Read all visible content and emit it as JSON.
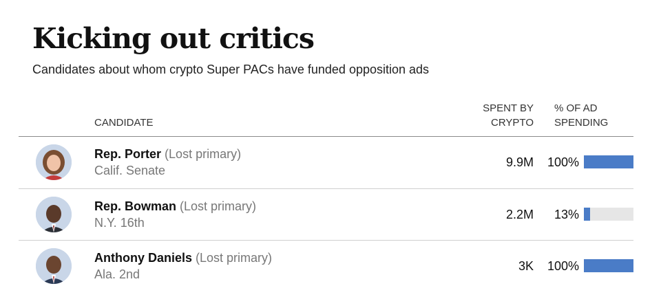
{
  "title": "Kicking out critics",
  "subtitle": "Candidates about whom crypto Super PACs have funded opposition ads",
  "columns": {
    "candidate": "CANDIDATE",
    "spent_line1": "SPENT BY",
    "spent_line2": "CRYPTO",
    "pct_line1": "% OF AD",
    "pct_line2": "SPENDING"
  },
  "colors": {
    "bar": "#4a7cc7",
    "track": "#e6e6e6"
  },
  "rows": [
    {
      "name": "Rep. Porter",
      "status": "(Lost primary)",
      "district": "Calif. Senate",
      "spent": "9.9M",
      "pct": "100%",
      "avatar": "portrait-photo"
    },
    {
      "name": "Rep. Bowman",
      "status": "(Lost primary)",
      "district": "N.Y. 16th",
      "spent": "2.2M",
      "pct": "13%",
      "avatar": "portrait-photo"
    },
    {
      "name": "Anthony Daniels",
      "status": "(Lost primary)",
      "district": "Ala. 2nd",
      "spent": "3K",
      "pct": "100%",
      "avatar": "portrait-photo"
    }
  ],
  "chart_data": {
    "type": "table",
    "title": "Kicking out critics",
    "subtitle": "Candidates about whom crypto Super PACs have funded opposition ads",
    "columns": [
      "CANDIDATE",
      "SPENT BY CRYPTO",
      "% OF AD SPENDING"
    ],
    "categories": [
      "Rep. Porter",
      "Rep. Bowman",
      "Anthony Daniels"
    ],
    "series": [
      {
        "name": "SPENT BY CRYPTO",
        "values": [
          9900000,
          2200000,
          3000
        ]
      },
      {
        "name": "% OF AD SPENDING",
        "values": [
          100,
          13,
          100
        ]
      }
    ]
  }
}
